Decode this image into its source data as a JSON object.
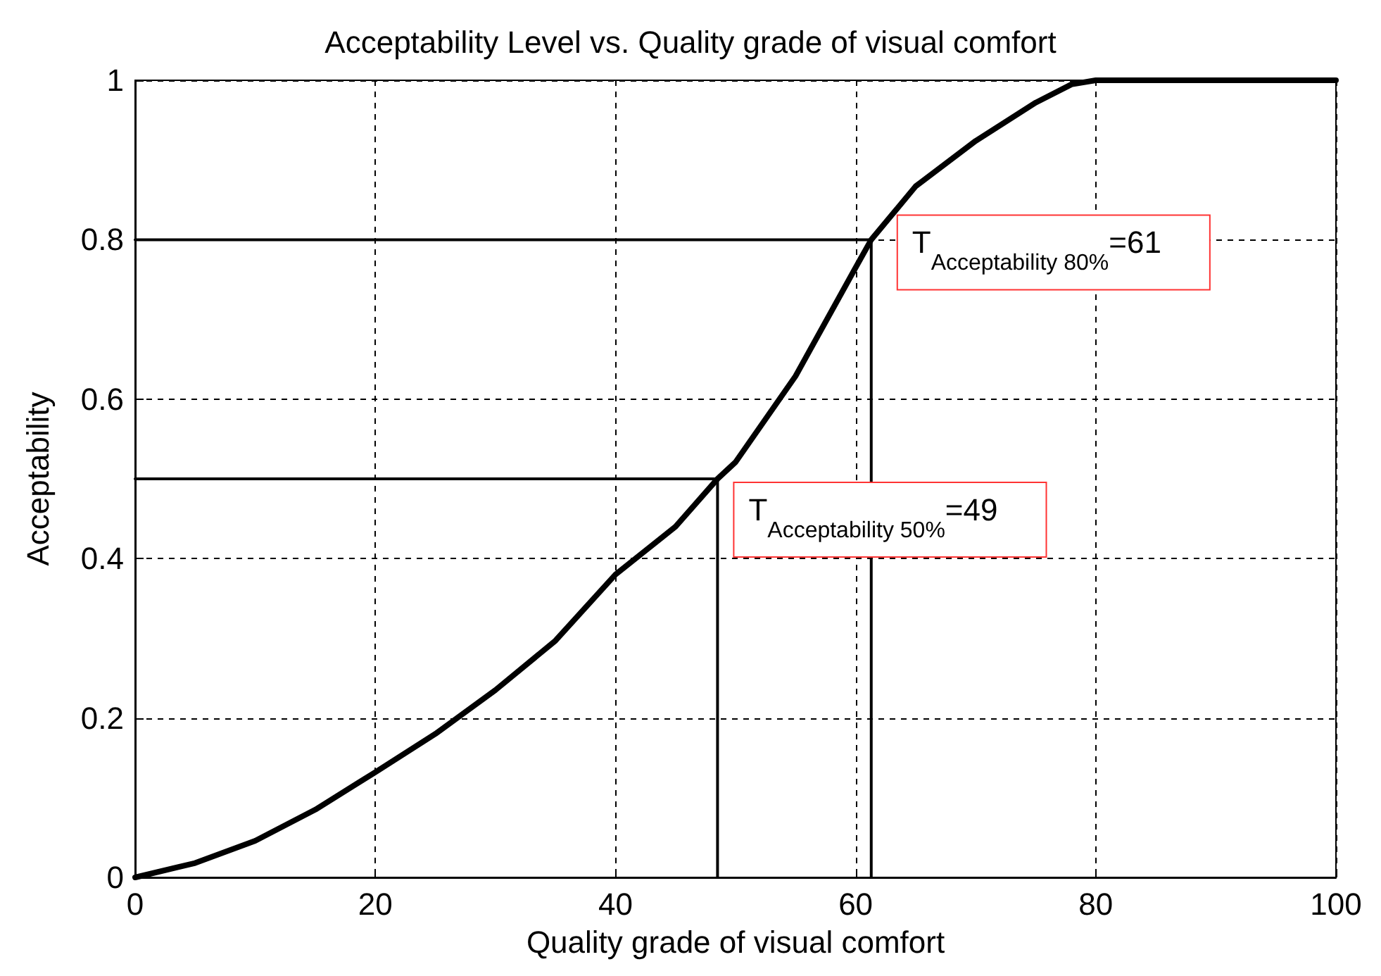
{
  "chart_data": {
    "type": "line",
    "title": "Acceptability Level vs. Quality grade of visual comfort",
    "xlabel": "Quality grade of visual comfort",
    "ylabel": "Acceptability",
    "xlim": [
      0,
      100
    ],
    "xticks": [
      0,
      20,
      40,
      60,
      80,
      100
    ],
    "ylim": [
      0,
      1
    ],
    "yticks": [
      0,
      0.2,
      0.4,
      0.6,
      0.8,
      1
    ],
    "grid": true,
    "marker": "none",
    "line_style": "solid",
    "series": [
      {
        "color": "#000000",
        "x": [
          0,
          5,
          10,
          15,
          20,
          25,
          30,
          35,
          40,
          45,
          48.5,
          50,
          55,
          60,
          61.3,
          65,
          70,
          75,
          78,
          80,
          90,
          100
        ],
        "values": [
          0,
          0.018,
          0.046,
          0.085,
          0.132,
          0.18,
          0.235,
          0.297,
          0.38,
          0.44,
          0.5,
          0.521,
          0.629,
          0.765,
          0.8,
          0.867,
          0.924,
          0.972,
          0.995,
          1,
          1,
          1
        ]
      },
      {
        "color": "#000000",
        "x": [
          0,
          48.5,
          48.5
        ],
        "values": [
          0.5,
          0.5,
          0
        ]
      },
      {
        "color": "#000000",
        "x": [
          0,
          61.3,
          61.3
        ],
        "values": [
          0.8,
          0.8,
          0
        ]
      }
    ],
    "annotations": [
      {
        "text": "T$_{Acceptability 50%}$=49",
        "x": 48.5,
        "y": 0.5
      },
      {
        "text": "T$_{Acceptability 80%}$=61",
        "x": 61.3,
        "y": 0.8
      }
    ]
  }
}
